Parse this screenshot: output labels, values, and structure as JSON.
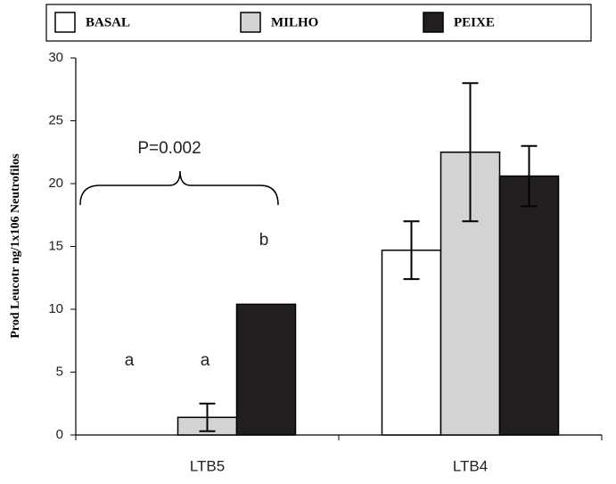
{
  "chart_data": {
    "type": "bar",
    "y_label": "Prod Leucotr ng/1x106 Neutrofilos",
    "categories": [
      "LTB5",
      "LTB4"
    ],
    "series": [
      {
        "name": "BASAL",
        "color": "#ffffff",
        "values": [
          0,
          14.7
        ],
        "errors": [
          null,
          2.3
        ]
      },
      {
        "name": "MILHO",
        "color": "#d3d3d3",
        "values": [
          1.4,
          22.5
        ],
        "errors": [
          1.1,
          5.5
        ]
      },
      {
        "name": "PEIXE",
        "color": "#231f20",
        "values": [
          10.4,
          20.6
        ],
        "errors": [
          null,
          2.4
        ]
      }
    ],
    "errors_upper_only": [
      [
        false,
        false
      ],
      [
        false,
        false
      ],
      [
        true,
        false
      ]
    ],
    "ylim": [
      0,
      30
    ],
    "yticks": [
      0,
      5,
      10,
      15,
      20,
      25,
      30
    ],
    "annotations": [
      "P=0.002",
      "a",
      "a",
      "b"
    ]
  }
}
